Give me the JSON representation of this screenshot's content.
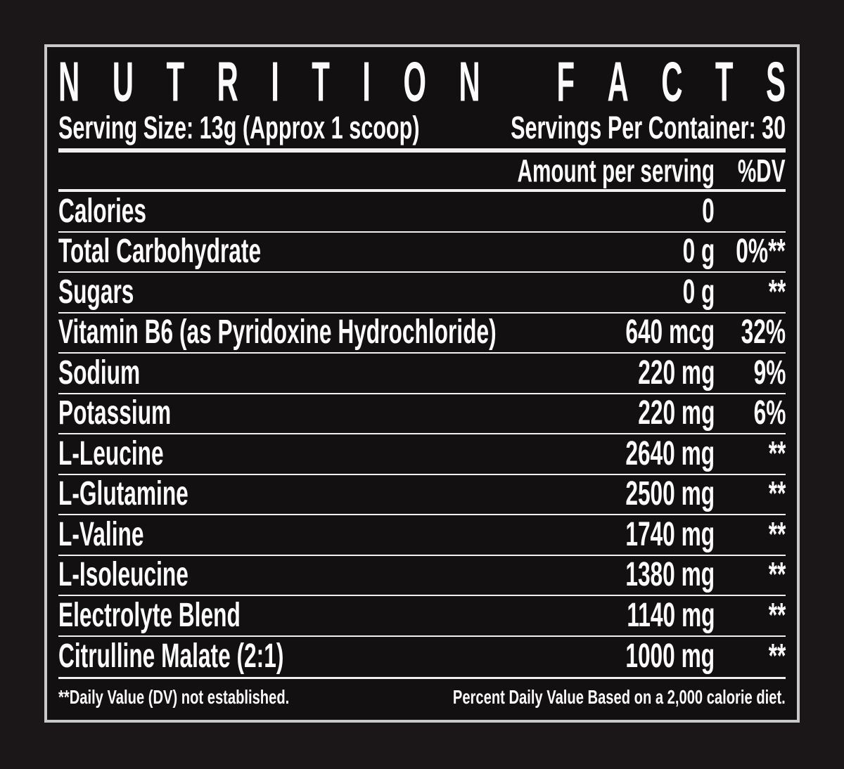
{
  "label": {
    "title": "NUTRITION FACTS",
    "serving_size": "Serving Size: 13g (Approx 1 scoop)",
    "servings_per_container": "Servings Per Container: 30",
    "columns": {
      "amount": "Amount per serving",
      "dv": "%DV"
    },
    "rows": [
      {
        "name": "Calories",
        "amount": "0",
        "dv": ""
      },
      {
        "name": "Total Carbohydrate",
        "amount": "0 g",
        "dv": "0%**"
      },
      {
        "name": "Sugars",
        "amount": "0 g",
        "dv": "**"
      },
      {
        "name": "Vitamin B6 (as Pyridoxine Hydrochloride)",
        "amount": "640 mcg",
        "dv": "32%"
      },
      {
        "name": "Sodium",
        "amount": "220 mg",
        "dv": "9%"
      },
      {
        "name": "Potassium",
        "amount": "220 mg",
        "dv": "6%"
      },
      {
        "name": "L-Leucine",
        "amount": "2640 mg",
        "dv": "**"
      },
      {
        "name": "L-Glutamine",
        "amount": "2500 mg",
        "dv": "**"
      },
      {
        "name": "L-Valine",
        "amount": "1740 mg",
        "dv": "**"
      },
      {
        "name": "L-Isoleucine",
        "amount": "1380 mg",
        "dv": "**"
      },
      {
        "name": "Electrolyte Blend",
        "amount": "1140 mg",
        "dv": "**"
      },
      {
        "name": "Citrulline Malate (2:1)",
        "amount": "1000 mg",
        "dv": "**"
      }
    ],
    "footnotes": {
      "left": "**Daily Value (DV) not established.",
      "right": "Percent Daily Value Based on a 2,000 calorie diet."
    },
    "colors": {
      "background": "#1b1617",
      "panel": "#131011",
      "border": "#c9c9c9",
      "text": "#fbfbfb",
      "rule": "#f0f0f0"
    }
  }
}
